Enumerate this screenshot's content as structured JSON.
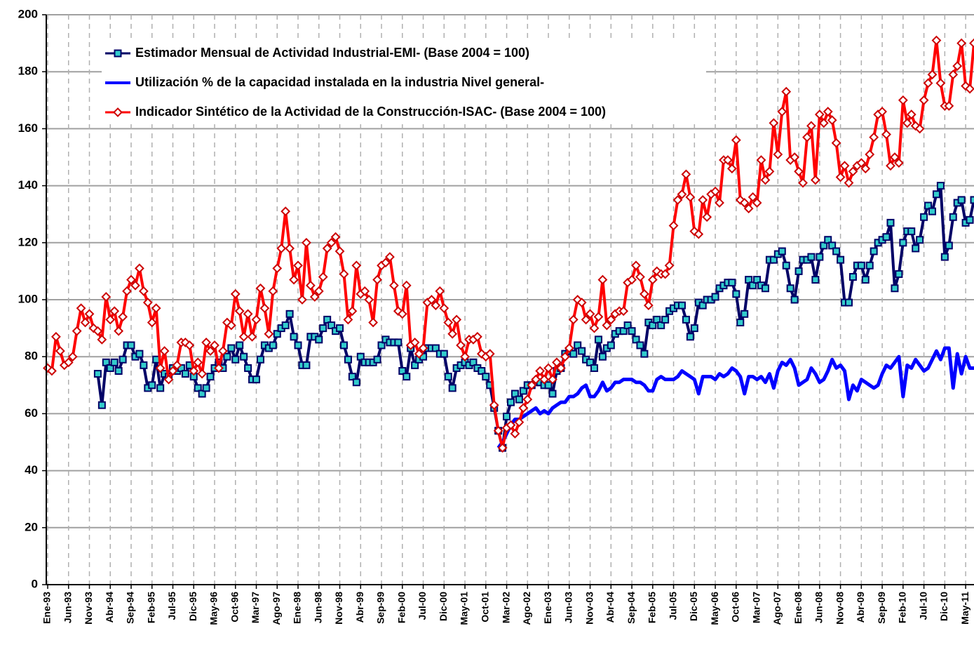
{
  "chart_data": {
    "type": "line",
    "categories": [
      "Ene-93",
      null,
      null,
      null,
      null,
      "Jun-93",
      null,
      null,
      null,
      null,
      "Nov-93",
      null,
      null,
      null,
      null,
      "Abr-94",
      null,
      null,
      null,
      null,
      "Sep-94",
      null,
      null,
      null,
      null,
      "Feb-95",
      null,
      null,
      null,
      null,
      "Jul-95",
      null,
      null,
      null,
      null,
      "Dic-95",
      null,
      null,
      null,
      null,
      "May-96",
      null,
      null,
      null,
      null,
      "Oct-96",
      null,
      null,
      null,
      null,
      "Mar-97",
      null,
      null,
      null,
      null,
      "Ago-97",
      null,
      null,
      null,
      null,
      "Ene-98",
      null,
      null,
      null,
      null,
      "Jun-98",
      null,
      null,
      null,
      null,
      "Nov-98",
      null,
      null,
      null,
      null,
      "Abr-99",
      null,
      null,
      null,
      null,
      "Sep-99",
      null,
      null,
      null,
      null,
      "Feb-00",
      null,
      null,
      null,
      null,
      "Jul-00",
      null,
      null,
      null,
      null,
      "Dic-00",
      null,
      null,
      null,
      null,
      "May-01",
      null,
      null,
      null,
      null,
      "Oct-01",
      null,
      null,
      null,
      null,
      "Mar-02",
      null,
      null,
      null,
      null,
      "Ago-02",
      null,
      null,
      null,
      null,
      "Ene-03",
      null,
      null,
      null,
      null,
      "Jun-03",
      null,
      null,
      null,
      null,
      "Nov-03",
      null,
      null,
      null,
      null,
      "Abr-04",
      null,
      null,
      null,
      null,
      "Sep-04",
      null,
      null,
      null,
      null,
      "Feb-05",
      null,
      null,
      null,
      null,
      "Jul-05",
      null,
      null,
      null,
      null,
      "Dic-05",
      null,
      null,
      null,
      null,
      "May-06",
      null,
      null,
      null,
      null,
      "Oct-06",
      null,
      null,
      null,
      null,
      "Mar-07",
      null,
      null,
      null,
      null,
      "Ago-07",
      null,
      null,
      null,
      null,
      "Ene-08",
      null,
      null,
      null,
      null,
      "Jun-08",
      null,
      null,
      null,
      null,
      "Nov-08",
      null,
      null,
      null,
      null,
      "Abr-09",
      null,
      null,
      null,
      null,
      "Sep-09",
      null,
      null,
      null,
      null,
      "Feb-10",
      null,
      null,
      null,
      null,
      "Jul-10",
      null,
      null,
      null,
      null,
      "Dic-10",
      null,
      null,
      null,
      null,
      "May-11",
      null,
      null
    ],
    "series": [
      {
        "name": "Estimador Mensual de Actividad Industrial-EMI- (Base 2004 = 100)",
        "color": "#000066",
        "marker": "square",
        "marker_fill": "#33cccc",
        "values": [
          null,
          null,
          null,
          null,
          null,
          null,
          null,
          null,
          null,
          null,
          null,
          null,
          74,
          63,
          78,
          76,
          78,
          75,
          79,
          84,
          84,
          80,
          81,
          77,
          69,
          70,
          79,
          69,
          74,
          73,
          76,
          75,
          76,
          74,
          77,
          73,
          69,
          67,
          69,
          73,
          76,
          78,
          76,
          80,
          83,
          79,
          84,
          80,
          76,
          72,
          72,
          79,
          84,
          83,
          84,
          88,
          90,
          91,
          95,
          87,
          84,
          77,
          77,
          87,
          87,
          86,
          90,
          93,
          91,
          89,
          90,
          84,
          79,
          73,
          71,
          80,
          78,
          78,
          78,
          79,
          84,
          86,
          85,
          85,
          85,
          75,
          73,
          83,
          77,
          79,
          80,
          83,
          83,
          83,
          81,
          81,
          73,
          69,
          76,
          77,
          78,
          77,
          78,
          76,
          75,
          73,
          70,
          62,
          54,
          48,
          59,
          64,
          67,
          65,
          68,
          70,
          70,
          71,
          71,
          70,
          70,
          67,
          75,
          76,
          81,
          82,
          81,
          84,
          82,
          79,
          78,
          76,
          86,
          80,
          83,
          84,
          88,
          89,
          89,
          91,
          89,
          86,
          84,
          81,
          92,
          91,
          93,
          91,
          93,
          96,
          97,
          98,
          98,
          93,
          87,
          90,
          99,
          98,
          100,
          100,
          101,
          104,
          105,
          106,
          106,
          102,
          92,
          95,
          107,
          105,
          107,
          105,
          104,
          114,
          114,
          116,
          117,
          112,
          104,
          100,
          110,
          114,
          114,
          115,
          107,
          115,
          119,
          121,
          119,
          117,
          114,
          99,
          99,
          108,
          112,
          112,
          107,
          112,
          117,
          120,
          121,
          122,
          127,
          104,
          109,
          120,
          124,
          124,
          118,
          121,
          129,
          133,
          131,
          137,
          140,
          115,
          119,
          129,
          134,
          135,
          127,
          128,
          135
        ]
      },
      {
        "name": "Utilización % de la capacidad instalada en la industria Nivel general-",
        "color": "#0000ff",
        "marker": null,
        "values": [
          null,
          null,
          null,
          null,
          null,
          null,
          null,
          null,
          null,
          null,
          null,
          null,
          null,
          null,
          null,
          null,
          null,
          null,
          null,
          null,
          null,
          null,
          null,
          null,
          null,
          null,
          null,
          null,
          null,
          null,
          null,
          null,
          null,
          null,
          null,
          null,
          null,
          null,
          null,
          null,
          null,
          null,
          null,
          null,
          null,
          null,
          null,
          null,
          null,
          null,
          null,
          null,
          null,
          null,
          null,
          null,
          null,
          null,
          null,
          null,
          null,
          null,
          null,
          null,
          null,
          null,
          null,
          null,
          null,
          null,
          null,
          null,
          null,
          null,
          null,
          null,
          null,
          null,
          null,
          null,
          null,
          null,
          null,
          null,
          null,
          null,
          null,
          null,
          null,
          null,
          null,
          null,
          null,
          null,
          null,
          null,
          null,
          null,
          null,
          null,
          null,
          null,
          null,
          null,
          null,
          null,
          null,
          null,
          48,
          50,
          53,
          56,
          58,
          58,
          59,
          60,
          61,
          62,
          60,
          61,
          60,
          62,
          63,
          64,
          64,
          66,
          66,
          67,
          69,
          70,
          66,
          66,
          68,
          71,
          68,
          69,
          71,
          71,
          72,
          72,
          72,
          71,
          71,
          70,
          68,
          68,
          72,
          73,
          72,
          72,
          72,
          73,
          75,
          74,
          73,
          72,
          67,
          73,
          73,
          73,
          72,
          74,
          73,
          74,
          76,
          75,
          73,
          67,
          73,
          73,
          72,
          73,
          71,
          74,
          69,
          75,
          78,
          77,
          79,
          76,
          70,
          71,
          72,
          76,
          74,
          71,
          72,
          75,
          79,
          76,
          77,
          75,
          65,
          70,
          68,
          72,
          71,
          70,
          69,
          70,
          74,
          77,
          76,
          78,
          80,
          66,
          77,
          76,
          79,
          77,
          75,
          76,
          79,
          82,
          79,
          83,
          83,
          69,
          81,
          74,
          80,
          76,
          76
        ]
      },
      {
        "name": "Indicador Sintético de la Actividad de la Construcción-ISAC- (Base 2004 = 100)",
        "color": "#ff0000",
        "marker": "diamond",
        "marker_fill": "#ffffff",
        "marker_stroke": "#cc0000",
        "values": [
          76,
          75,
          87,
          82,
          77,
          78,
          80,
          89,
          97,
          92,
          95,
          90,
          89,
          86,
          101,
          93,
          96,
          89,
          94,
          103,
          107,
          105,
          111,
          103,
          99,
          92,
          97,
          76,
          82,
          72,
          75,
          77,
          85,
          85,
          84,
          75,
          78,
          74,
          85,
          82,
          84,
          76,
          82,
          92,
          91,
          102,
          96,
          87,
          95,
          87,
          93,
          104,
          97,
          88,
          103,
          111,
          118,
          131,
          118,
          107,
          112,
          100,
          120,
          105,
          101,
          103,
          108,
          118,
          120,
          122,
          117,
          109,
          93,
          96,
          112,
          102,
          103,
          100,
          92,
          107,
          112,
          113,
          115,
          105,
          96,
          95,
          105,
          84,
          85,
          81,
          83,
          99,
          100,
          98,
          103,
          97,
          92,
          88,
          93,
          84,
          80,
          86,
          86,
          87,
          81,
          80,
          81,
          63,
          54,
          48,
          55,
          56,
          53,
          57,
          62,
          65,
          70,
          72,
          75,
          72,
          76,
          72,
          78,
          76,
          80,
          83,
          93,
          100,
          99,
          93,
          95,
          90,
          94,
          107,
          91,
          93,
          95,
          96,
          96,
          106,
          107,
          112,
          108,
          102,
          98,
          107,
          110,
          109,
          109,
          112,
          126,
          135,
          137,
          144,
          136,
          124,
          123,
          135,
          129,
          137,
          138,
          134,
          149,
          149,
          146,
          156,
          135,
          134,
          132,
          136,
          134,
          149,
          142,
          145,
          162,
          151,
          166,
          173,
          149,
          150,
          145,
          141,
          157,
          161,
          142,
          165,
          162,
          166,
          163,
          155,
          143,
          147,
          141,
          145,
          147,
          148,
          146,
          151,
          157,
          165,
          166,
          158,
          147,
          150,
          148,
          170,
          162,
          165,
          161,
          160,
          170,
          176,
          179,
          191,
          176,
          168,
          168,
          179,
          182,
          190,
          175,
          174,
          190
        ]
      }
    ],
    "ylim": [
      0,
      200
    ],
    "yticks": [
      0,
      20,
      40,
      60,
      80,
      100,
      120,
      140,
      160,
      180,
      200
    ],
    "grid": true
  }
}
